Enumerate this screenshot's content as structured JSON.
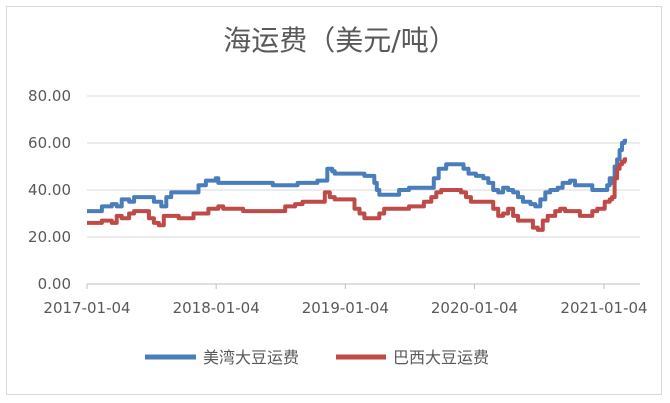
{
  "chart_data": {
    "type": "line",
    "title": "海运费（美元/吨）",
    "xlabel": "",
    "ylabel": "",
    "ylim": [
      0,
      80
    ],
    "yticks": [
      "0.00",
      "20.00",
      "40.00",
      "60.00",
      "80.00"
    ],
    "xticks": [
      "2017-01-04",
      "2018-01-04",
      "2019-01-04",
      "2020-01-04",
      "2021-01-04"
    ],
    "xrange": [
      "2017-01-04",
      "2021-03-10"
    ],
    "grid": "horizontal",
    "legend": "bottom",
    "series": [
      {
        "name": "美湾大豆运费",
        "color": "#4a7ebb",
        "points": [
          [
            "2017-01-04",
            31
          ],
          [
            "2017-02-01",
            31
          ],
          [
            "2017-02-15",
            33
          ],
          [
            "2017-03-15",
            34
          ],
          [
            "2017-03-29",
            33
          ],
          [
            "2017-04-12",
            36
          ],
          [
            "2017-05-03",
            35
          ],
          [
            "2017-05-17",
            37
          ],
          [
            "2017-07-05",
            37
          ],
          [
            "2017-07-12",
            35
          ],
          [
            "2017-08-02",
            33
          ],
          [
            "2017-08-16",
            37
          ],
          [
            "2017-08-30",
            39
          ],
          [
            "2017-11-01",
            39
          ],
          [
            "2017-11-15",
            42
          ],
          [
            "2017-12-06",
            44
          ],
          [
            "2017-12-27",
            44
          ],
          [
            "2018-01-03",
            45
          ],
          [
            "2018-01-10",
            43
          ],
          [
            "2018-06-06",
            43
          ],
          [
            "2018-06-13",
            42
          ],
          [
            "2018-08-15",
            42
          ],
          [
            "2018-08-22",
            43
          ],
          [
            "2018-10-03",
            43
          ],
          [
            "2018-10-17",
            44
          ],
          [
            "2018-11-07",
            44
          ],
          [
            "2018-11-14",
            49
          ],
          [
            "2018-11-28",
            48
          ],
          [
            "2018-12-05",
            47
          ],
          [
            "2019-02-13",
            47
          ],
          [
            "2019-02-27",
            46
          ],
          [
            "2019-03-20",
            46
          ],
          [
            "2019-03-27",
            43
          ],
          [
            "2019-04-03",
            40
          ],
          [
            "2019-04-10",
            38
          ],
          [
            "2019-05-22",
            38
          ],
          [
            "2019-06-05",
            40
          ],
          [
            "2019-06-19",
            40
          ],
          [
            "2019-07-03",
            41
          ],
          [
            "2019-08-28",
            41
          ],
          [
            "2019-09-11",
            45
          ],
          [
            "2019-09-25",
            49
          ],
          [
            "2019-10-16",
            51
          ],
          [
            "2019-11-20",
            51
          ],
          [
            "2019-12-04",
            49
          ],
          [
            "2019-12-18",
            47
          ],
          [
            "2020-01-08",
            46
          ],
          [
            "2020-01-29",
            45
          ],
          [
            "2020-02-12",
            43
          ],
          [
            "2020-02-26",
            40
          ],
          [
            "2020-03-11",
            39
          ],
          [
            "2020-03-25",
            41
          ],
          [
            "2020-04-08",
            40
          ],
          [
            "2020-04-22",
            39
          ],
          [
            "2020-05-06",
            37
          ],
          [
            "2020-05-20",
            35
          ],
          [
            "2020-06-10",
            34
          ],
          [
            "2020-06-24",
            33
          ],
          [
            "2020-07-08",
            36
          ],
          [
            "2020-07-22",
            39
          ],
          [
            "2020-08-05",
            40
          ],
          [
            "2020-08-26",
            41
          ],
          [
            "2020-09-09",
            43
          ],
          [
            "2020-09-30",
            44
          ],
          [
            "2020-10-14",
            42
          ],
          [
            "2020-11-25",
            42
          ],
          [
            "2020-12-02",
            40
          ],
          [
            "2021-01-06",
            40
          ],
          [
            "2021-01-13",
            42
          ],
          [
            "2021-01-20",
            45
          ],
          [
            "2021-01-27",
            43
          ],
          [
            "2021-02-03",
            50
          ],
          [
            "2021-02-10",
            53
          ],
          [
            "2021-02-17",
            57
          ],
          [
            "2021-02-24",
            60
          ],
          [
            "2021-03-03",
            61
          ],
          [
            "2021-03-10",
            61
          ]
        ]
      },
      {
        "name": "巴西大豆运费",
        "color": "#be4b48",
        "points": [
          [
            "2017-01-04",
            26
          ],
          [
            "2017-02-01",
            26
          ],
          [
            "2017-02-15",
            27
          ],
          [
            "2017-03-15",
            26
          ],
          [
            "2017-03-29",
            29
          ],
          [
            "2017-04-12",
            28
          ],
          [
            "2017-05-03",
            30
          ],
          [
            "2017-05-17",
            31
          ],
          [
            "2017-06-14",
            31
          ],
          [
            "2017-06-28",
            28
          ],
          [
            "2017-07-12",
            26
          ],
          [
            "2017-07-26",
            25
          ],
          [
            "2017-08-09",
            29
          ],
          [
            "2017-09-06",
            29
          ],
          [
            "2017-09-20",
            28
          ],
          [
            "2017-10-18",
            28
          ],
          [
            "2017-11-01",
            30
          ],
          [
            "2017-12-06",
            30
          ],
          [
            "2017-12-13",
            32
          ],
          [
            "2018-01-10",
            33
          ],
          [
            "2018-01-24",
            32
          ],
          [
            "2018-03-07",
            32
          ],
          [
            "2018-03-21",
            31
          ],
          [
            "2018-07-04",
            31
          ],
          [
            "2018-07-18",
            33
          ],
          [
            "2018-08-15",
            34
          ],
          [
            "2018-09-05",
            35
          ],
          [
            "2018-10-31",
            35
          ],
          [
            "2018-11-07",
            39
          ],
          [
            "2018-11-21",
            37
          ],
          [
            "2018-12-05",
            36
          ],
          [
            "2019-01-16",
            36
          ],
          [
            "2019-01-30",
            32
          ],
          [
            "2019-02-13",
            30
          ],
          [
            "2019-02-27",
            28
          ],
          [
            "2019-03-27",
            28
          ],
          [
            "2019-04-10",
            30
          ],
          [
            "2019-04-24",
            32
          ],
          [
            "2019-06-19",
            32
          ],
          [
            "2019-07-03",
            33
          ],
          [
            "2019-07-31",
            33
          ],
          [
            "2019-08-14",
            35
          ],
          [
            "2019-09-04",
            37
          ],
          [
            "2019-09-18",
            39
          ],
          [
            "2019-10-02",
            40
          ],
          [
            "2019-11-13",
            40
          ],
          [
            "2019-11-27",
            39
          ],
          [
            "2019-12-11",
            37
          ],
          [
            "2019-12-25",
            35
          ],
          [
            "2020-02-12",
            35
          ],
          [
            "2020-02-26",
            32
          ],
          [
            "2020-03-11",
            29
          ],
          [
            "2020-03-25",
            30
          ],
          [
            "2020-04-08",
            32
          ],
          [
            "2020-04-22",
            29
          ],
          [
            "2020-05-06",
            27
          ],
          [
            "2020-06-03",
            27
          ],
          [
            "2020-06-17",
            24
          ],
          [
            "2020-07-01",
            23
          ],
          [
            "2020-07-15",
            27
          ],
          [
            "2020-07-29",
            29
          ],
          [
            "2020-08-19",
            31
          ],
          [
            "2020-09-02",
            32
          ],
          [
            "2020-09-16",
            31
          ],
          [
            "2020-10-14",
            31
          ],
          [
            "2020-10-28",
            29
          ],
          [
            "2020-11-25",
            29
          ],
          [
            "2020-12-02",
            31
          ],
          [
            "2020-12-16",
            32
          ],
          [
            "2020-12-30",
            32
          ],
          [
            "2021-01-06",
            35
          ],
          [
            "2021-01-20",
            36
          ],
          [
            "2021-01-27",
            37
          ],
          [
            "2021-02-03",
            45
          ],
          [
            "2021-02-10",
            49
          ],
          [
            "2021-02-17",
            51
          ],
          [
            "2021-02-24",
            52
          ],
          [
            "2021-03-03",
            53
          ],
          [
            "2021-03-10",
            53
          ]
        ]
      }
    ]
  }
}
